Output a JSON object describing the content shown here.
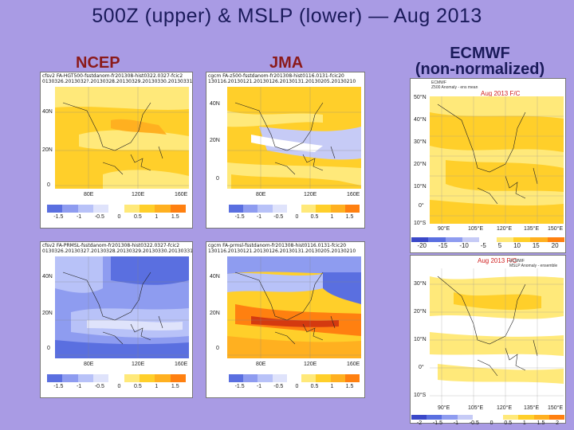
{
  "title": "500Z (upper) & MSLP (lower)  —  Aug 2013",
  "headers": {
    "ncep": "NCEP",
    "jma": "JMA",
    "ecmwf_line1": "ECMWF",
    "ecmwf_line2": "(non-normalized)"
  },
  "ncep_upper": {
    "caption1": "cfsv2 FA-HGT500-fsstdanom-fr201308-hist0322.0327-fcic2",
    "caption2": "0130326.2013032?.20130328.20130329.20130330.20130331",
    "lats": [
      "40N",
      "20N",
      "0"
    ],
    "lons": [
      "80E",
      "120E",
      "160E"
    ],
    "ticks": [
      "-1.5",
      "-1",
      "-0.5",
      "0",
      "0.5",
      "1",
      "1.5"
    ]
  },
  "ncep_lower": {
    "caption1": "cfsv2 FA-PRMSL-fsstdanom-fr201308-hist0322.0327-fcic2",
    "caption2": "0130326.20130327.20130328.20130329.20130330.20130331",
    "lats": [
      "40N",
      "20N",
      "0"
    ],
    "lons": [
      "80E",
      "120E",
      "160E"
    ],
    "ticks": [
      "-1.5",
      "-1",
      "-0.5",
      "0",
      "0.5",
      "1",
      "1.5"
    ]
  },
  "jma_upper": {
    "caption1": "cgcm FA-z500-fsstdanom-fr201308-hist0116.0131-fcic20",
    "caption2": "130116.20130121.20130126.20130131.20130205.20130210",
    "lats": [
      "40N",
      "20N",
      "0"
    ],
    "lons": [
      "80E",
      "120E",
      "160E"
    ],
    "ticks": [
      "-1.5",
      "-1",
      "-0.5",
      "0",
      "0.5",
      "1",
      "1.5"
    ]
  },
  "jma_lower": {
    "caption1": "cgcm FA-prmsl-fsstdanom-fr201308-hist0116.0131-fcic20",
    "caption2": "130116.20130121.20130126.20130131.20130205.20130210",
    "lats": [
      "40N",
      "20N",
      "0"
    ],
    "lons": [
      "80E",
      "120E",
      "160E"
    ],
    "ticks": [
      "-1.5",
      "-1",
      "-0.5",
      "0",
      "0.5",
      "1",
      "1.5"
    ]
  },
  "ecmwf_upper": {
    "info1": "ECMWF",
    "info2": "Z500 Anomaly - ens mean",
    "red": "Aug 2013  F/C",
    "lats": [
      "50°N",
      "40°N",
      "30°N",
      "20°N",
      "10°N",
      "0°",
      "10°S"
    ],
    "lons": [
      "90°E",
      "105°E",
      "120°E",
      "135°E",
      "150°E"
    ],
    "ticks": [
      "-20",
      "-15",
      "-10",
      "-5",
      "5",
      "10",
      "15",
      "20"
    ]
  },
  "ecmwf_lower": {
    "info1": "ECMWF",
    "info2": "MSLP Anomaly - ensemble mean (hPa)",
    "red": "Aug 2013  F/C",
    "lats": [
      "30°N",
      "20°N",
      "10°N",
      "0°",
      "10°S"
    ],
    "lons": [
      "90°E",
      "105°E",
      "120°E",
      "135°E",
      "150°E"
    ],
    "ticks": [
      "-2",
      "-1.5",
      "-1",
      "-0.5",
      "0",
      "0.5",
      "1",
      "1.5",
      "2"
    ]
  }
}
